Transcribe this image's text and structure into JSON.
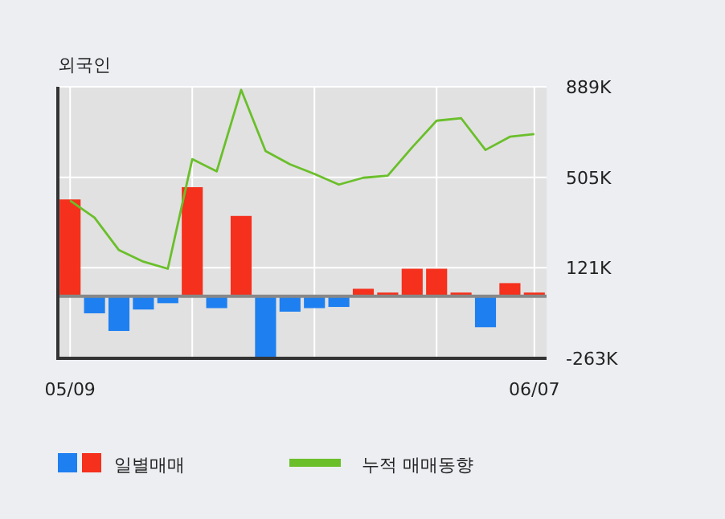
{
  "chart_data": {
    "type": "bar",
    "title": "외국인",
    "categories": [
      "05/09",
      null,
      null,
      null,
      null,
      null,
      null,
      null,
      null,
      null,
      null,
      null,
      null,
      null,
      null,
      null,
      null,
      null,
      null,
      "06/07"
    ],
    "ylim": [
      -263,
      889
    ],
    "yticks": [
      {
        "value": 889,
        "label": "889K"
      },
      {
        "value": 505,
        "label": "505K"
      },
      {
        "value": 121,
        "label": "121K"
      },
      {
        "value": -263,
        "label": "-263K"
      }
    ],
    "grid": true,
    "legend": "bottom",
    "series": [
      {
        "name": "일별매매",
        "colors": [
          "#f5301c",
          "#1e7ff0",
          "#1e7ff0",
          "#1e7ff0",
          "#1e7ff0",
          "#f5301c",
          "#1e7ff0",
          "#f5301c",
          "#1e7ff0",
          "#1e7ff0",
          "#1e7ff0",
          "#1e7ff0",
          "#f5301c",
          "#f5301c",
          "#f5301c",
          "#f5301c",
          "#f5301c",
          "#1e7ff0",
          "#f5301c",
          "#f5301c"
        ],
        "values": [
          411,
          -72,
          -147,
          -56,
          -29,
          463,
          -50,
          341,
          -262,
          -65,
          -50,
          -45,
          32,
          16,
          117,
          117,
          16,
          -131,
          56,
          16
        ]
      },
      {
        "name": "누적 매매동향",
        "type": "line",
        "color": "#6abf2a",
        "values": [
          406,
          334,
          196,
          147,
          117,
          582,
          530,
          876,
          616,
          560,
          519,
          474,
          503,
          512,
          632,
          745,
          756,
          621,
          677,
          688
        ]
      }
    ]
  }
}
